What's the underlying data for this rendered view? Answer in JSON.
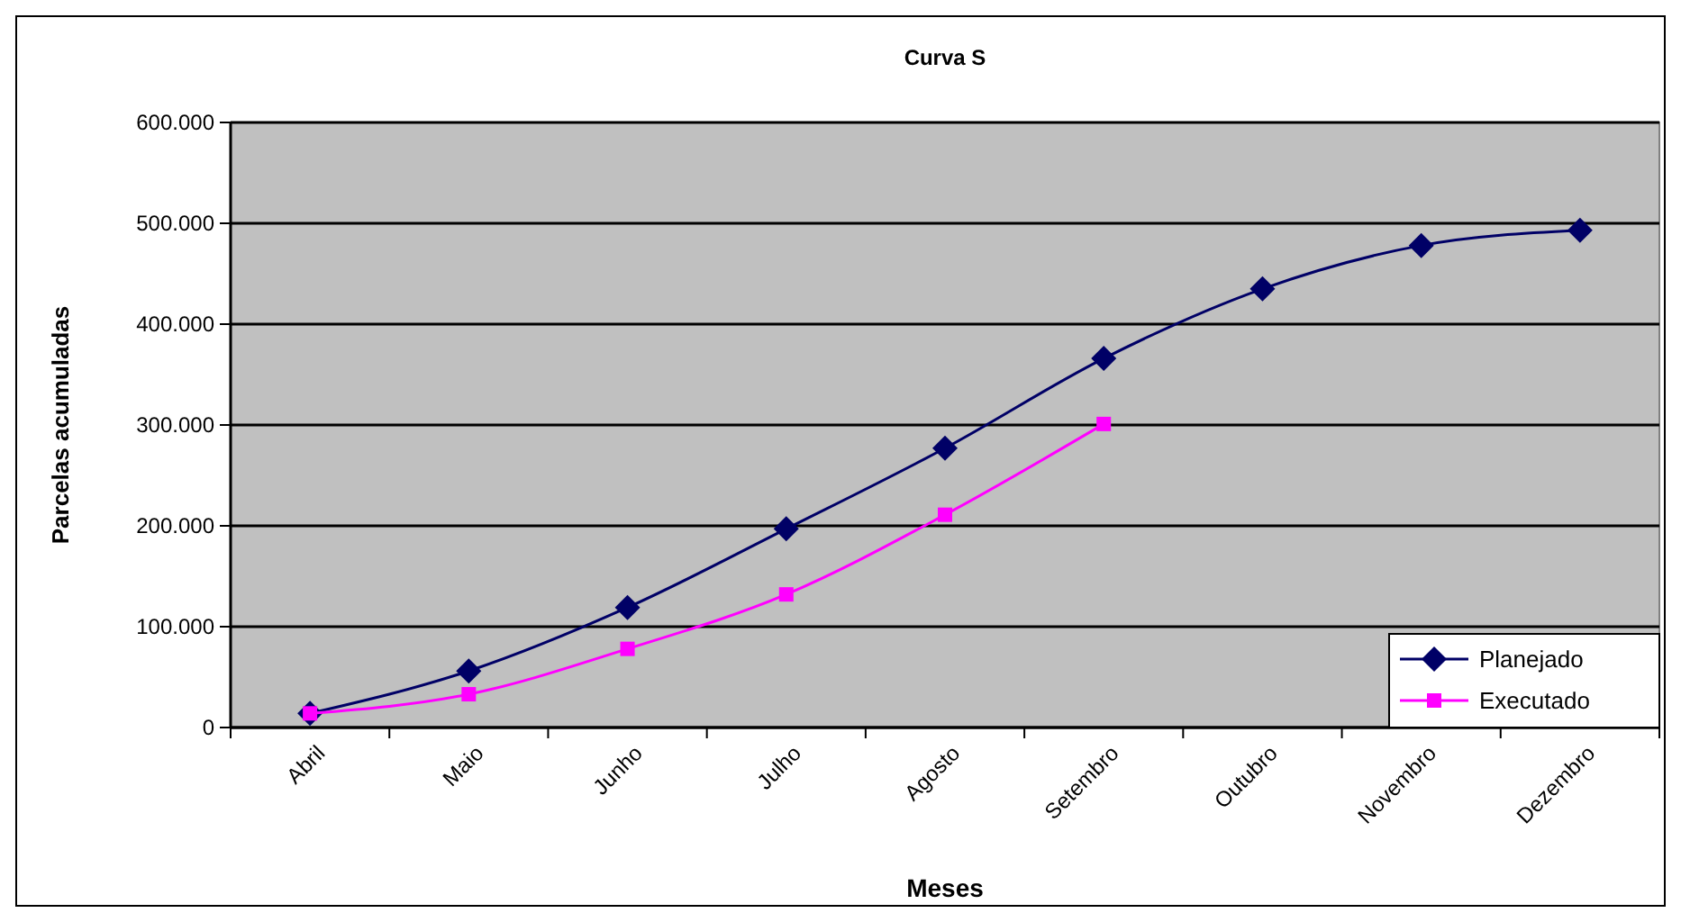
{
  "chart_data": {
    "type": "line",
    "title": "Curva S",
    "xlabel": "Meses",
    "ylabel": "Parcelas acumuladas",
    "categories": [
      "Abril",
      "Maio",
      "Junho",
      "Julho",
      "Agosto",
      "Setembro",
      "Outubro",
      "Novembro",
      "Dezembro"
    ],
    "series": [
      {
        "name": "Planejado",
        "color": "#000066",
        "marker": "diamond",
        "values": [
          14000,
          56000,
          119000,
          197000,
          277000,
          366000,
          435000,
          478000,
          493000
        ]
      },
      {
        "name": "Executado",
        "color": "#ff00ff",
        "marker": "square",
        "values": [
          14000,
          33000,
          78000,
          132000,
          211000,
          301000,
          null,
          null,
          null
        ]
      }
    ],
    "ylim": [
      0,
      600000
    ],
    "yticks": [
      0,
      {
        "value": 100000,
        "label": "100.000"
      },
      {
        "value": 200000,
        "label": "200.000"
      },
      {
        "value": 300000,
        "label": "300.000"
      },
      {
        "value": 400000,
        "label": "400.000"
      },
      {
        "value": 500000,
        "label": "500.000"
      },
      {
        "value": 600000,
        "label": "600.000"
      }
    ],
    "grid": "y",
    "legend": "bottom right"
  }
}
